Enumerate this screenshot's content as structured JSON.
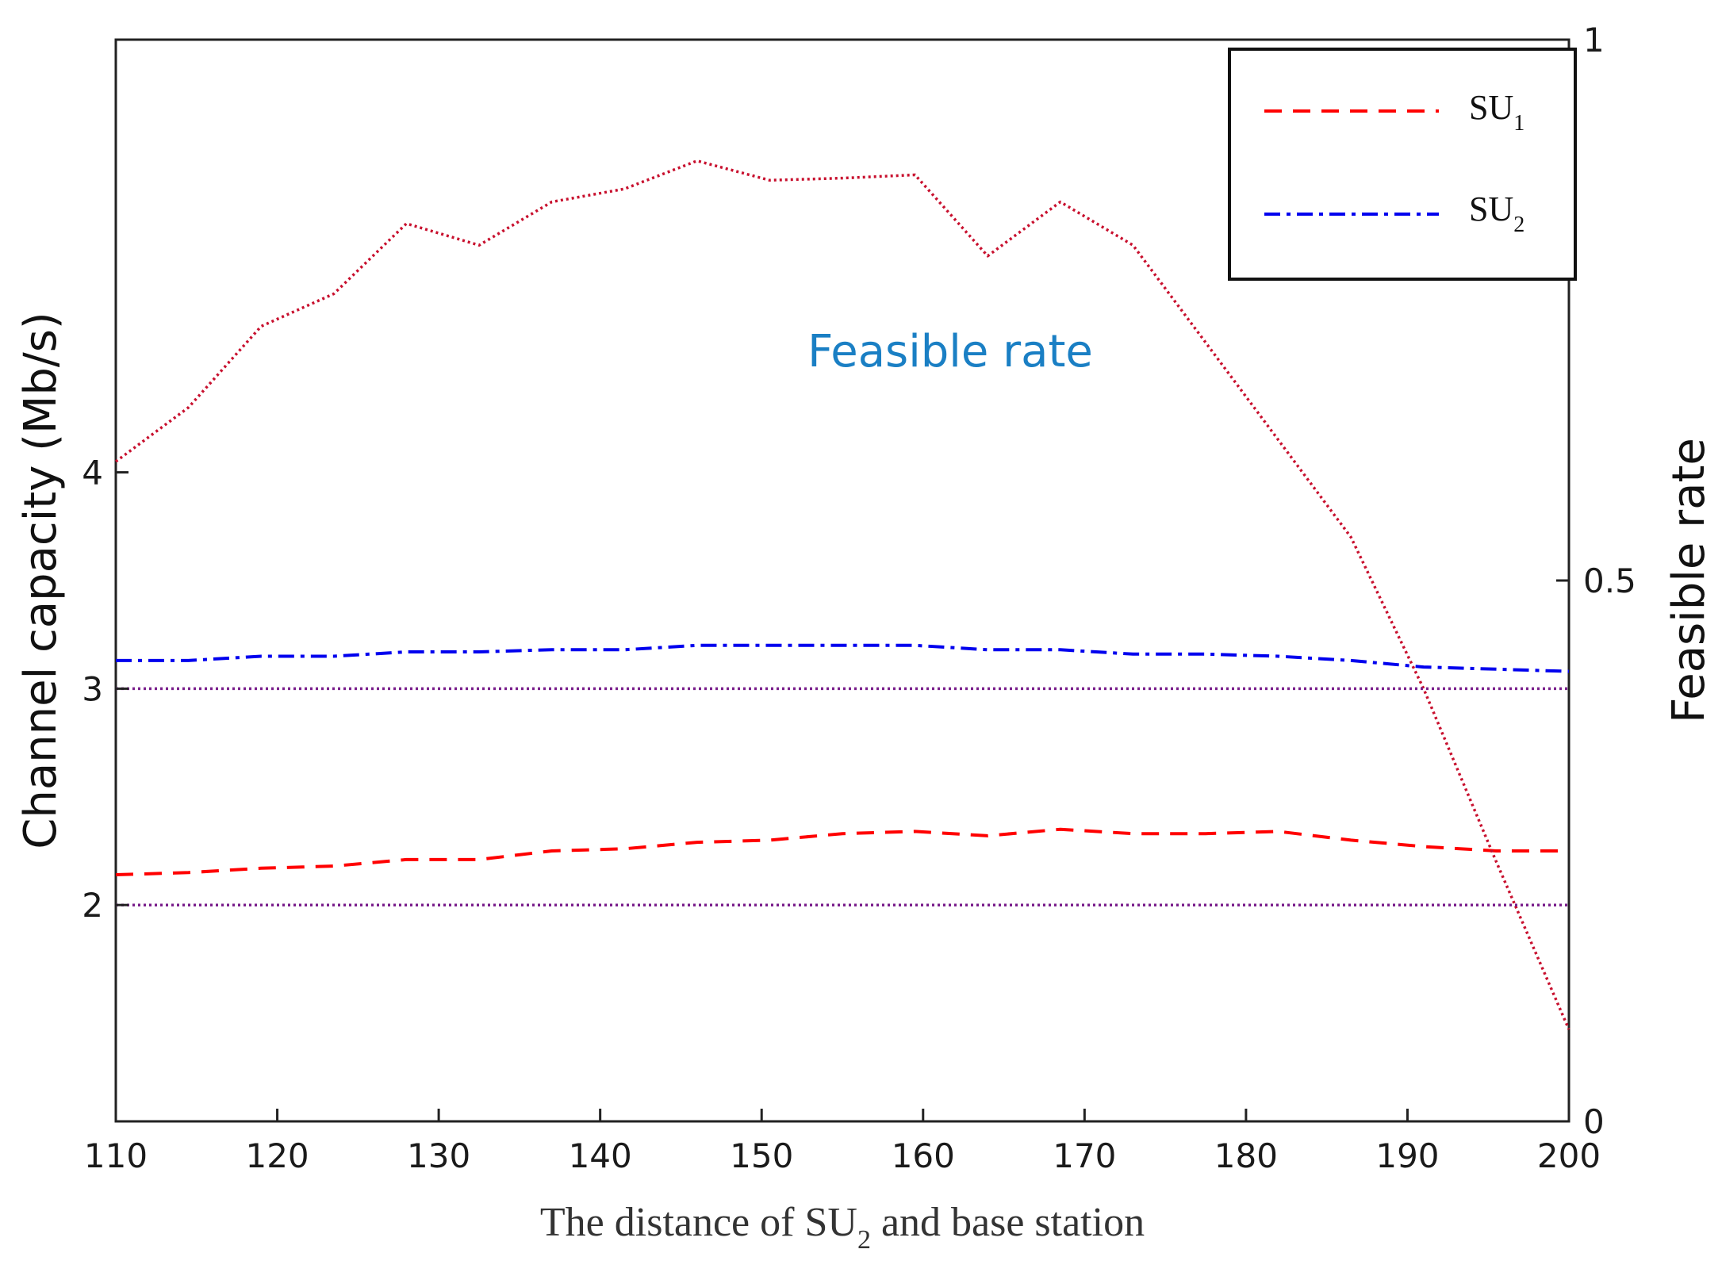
{
  "chart_data": {
    "type": "line",
    "title": "",
    "xlabel": "The distance of SU",
    "xlabel_sub": "2",
    "xlabel_suffix": " and base station",
    "ylabel_left": "Channel capacity (Mb/s)",
    "ylabel_right": "Feasible rate",
    "annotation": "Feasible rate",
    "xlim": [
      110,
      200
    ],
    "ylim_left": [
      1.0,
      6.0
    ],
    "ylim_right": [
      0,
      1
    ],
    "x_ticks": [
      "110",
      "120",
      "130",
      "140",
      "150",
      "160",
      "170",
      "180",
      "190",
      "200"
    ],
    "y_left_ticks": [
      "2",
      "3",
      "4"
    ],
    "y_right_ticks": [
      "0",
      "0.5",
      "1"
    ],
    "legend": {
      "position": "top-right",
      "entries": [
        {
          "label": "SU",
          "sub": "1"
        },
        {
          "label": "SU",
          "sub": "2"
        }
      ]
    },
    "colors": {
      "su1": "#ff0000",
      "su2": "#0000ee",
      "feasible": "#c8102e",
      "reference": "#7a1f8c",
      "annotation": "#1a7fc4"
    },
    "series": [
      {
        "name": "SU1",
        "axis": "left",
        "style": "dashed",
        "x": [
          110,
          114.5,
          119,
          123.5,
          128,
          132.5,
          137,
          141.5,
          146,
          150.5,
          155,
          159.5,
          164,
          168.5,
          173,
          177.5,
          182,
          186.5,
          191,
          195.5,
          200
        ],
        "y": [
          2.14,
          2.15,
          2.17,
          2.18,
          2.21,
          2.21,
          2.25,
          2.26,
          2.29,
          2.3,
          2.33,
          2.34,
          2.32,
          2.35,
          2.33,
          2.33,
          2.34,
          2.3,
          2.27,
          2.25,
          2.25
        ]
      },
      {
        "name": "SU2",
        "axis": "left",
        "style": "dashdot",
        "x": [
          110,
          114.5,
          119,
          123.5,
          128,
          132.5,
          137,
          141.5,
          146,
          150.5,
          155,
          159.5,
          164,
          168.5,
          173,
          177.5,
          182,
          186.5,
          191,
          195.5,
          200
        ],
        "y": [
          3.13,
          3.13,
          3.15,
          3.15,
          3.17,
          3.17,
          3.18,
          3.18,
          3.2,
          3.2,
          3.2,
          3.2,
          3.18,
          3.18,
          3.16,
          3.16,
          3.15,
          3.13,
          3.1,
          3.09,
          3.08
        ]
      },
      {
        "name": "Feasible rate",
        "axis": "right",
        "style": "dotted",
        "x": [
          110,
          114.5,
          119,
          123.5,
          128,
          132.5,
          137,
          141.5,
          146,
          150.5,
          155,
          159.5,
          164,
          168.5,
          173,
          177.5,
          182,
          186.5,
          191,
          195.5,
          200
        ],
        "y": [
          0.61,
          0.66,
          0.735,
          0.765,
          0.83,
          0.81,
          0.85,
          0.862,
          0.888,
          0.87,
          0.872,
          0.875,
          0.8,
          0.85,
          0.81,
          0.72,
          0.63,
          0.54,
          0.4,
          0.24,
          0.085
        ]
      },
      {
        "name": "Reference 3 Mb/s",
        "axis": "left",
        "style": "dotted",
        "x": [
          110,
          200
        ],
        "y": [
          3.0,
          3.0
        ]
      },
      {
        "name": "Reference 2 Mb/s",
        "axis": "left",
        "style": "dotted",
        "x": [
          110,
          200
        ],
        "y": [
          2.0,
          2.0
        ]
      }
    ]
  }
}
